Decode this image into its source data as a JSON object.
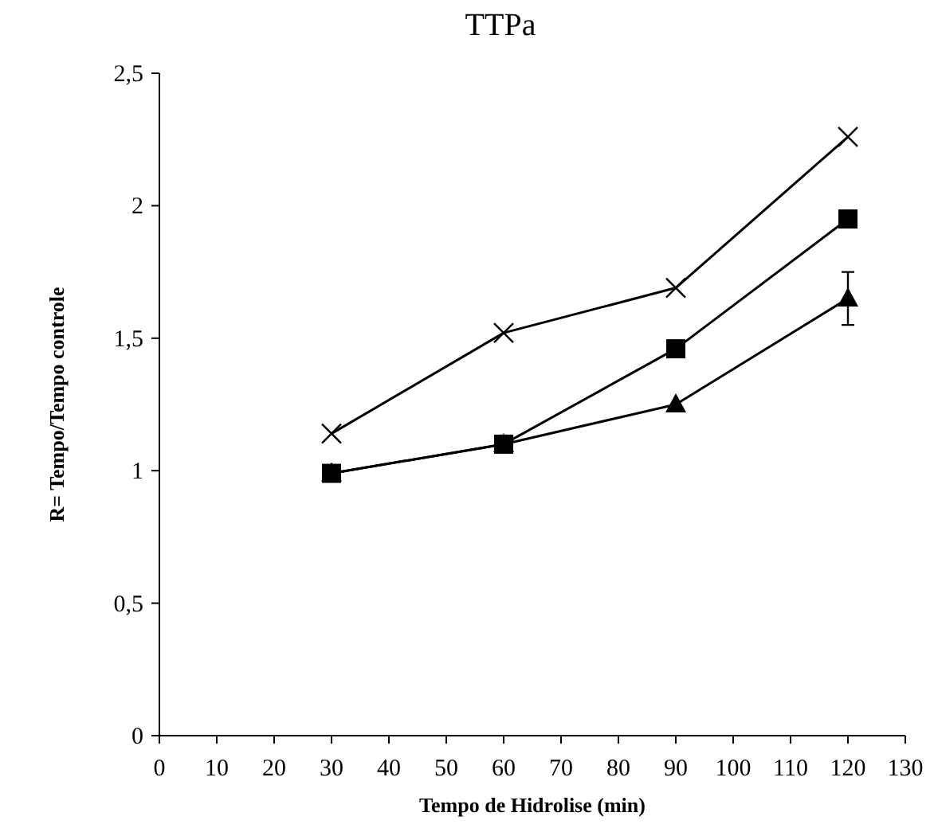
{
  "chart_data": {
    "type": "line",
    "title": "TTPa",
    "xlabel": "Tempo de Hidrolise (min)",
    "ylabel": "R= Tempo/Tempo controle",
    "x": [
      30,
      60,
      90,
      120
    ],
    "series": [
      {
        "color": "#000000",
        "marker": "cross",
        "values": [
          1.14,
          1.52,
          1.69,
          2.26
        ]
      },
      {
        "color": "#000000",
        "marker": "square",
        "values": [
          0.99,
          1.1,
          1.46,
          1.95
        ]
      },
      {
        "color": "#000000",
        "marker": "triangle",
        "values": [
          0.99,
          1.1,
          1.25,
          1.65
        ],
        "errors": [
          null,
          null,
          null,
          0.1
        ]
      }
    ],
    "xlim": [
      0,
      130
    ],
    "xticks": [
      0,
      10,
      20,
      30,
      40,
      50,
      60,
      70,
      80,
      90,
      100,
      110,
      120,
      130
    ],
    "ylim": [
      0,
      2.5
    ],
    "yticks": [
      0,
      {
        "value": 0.5,
        "label": "0,5"
      },
      1,
      {
        "value": 1.5,
        "label": "1,5"
      },
      2,
      {
        "value": 2.5,
        "label": "2,5"
      }
    ],
    "grid": false,
    "line_style": "solid"
  }
}
